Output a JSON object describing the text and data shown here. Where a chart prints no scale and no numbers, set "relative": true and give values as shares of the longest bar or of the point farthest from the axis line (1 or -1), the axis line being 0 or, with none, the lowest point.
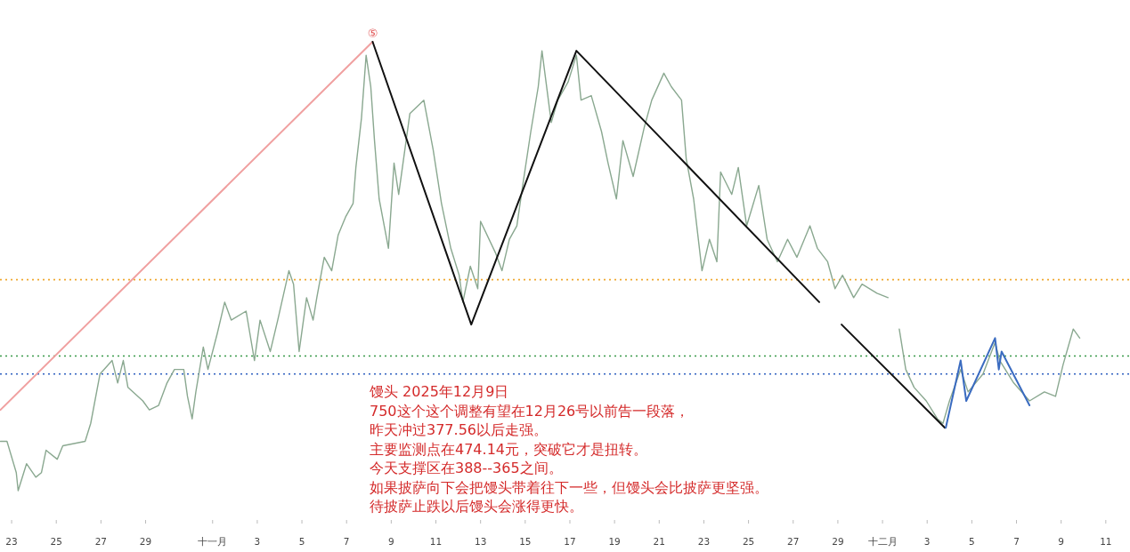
{
  "chart_data": {
    "type": "line",
    "relative": true,
    "xlim": [
      "2025-10-22T11:30",
      "2025-12-12T02:00"
    ],
    "xticks": [
      {
        "value": "2025-10-23",
        "label": "23"
      },
      {
        "value": "2025-10-25",
        "label": "25"
      },
      {
        "value": "2025-10-27",
        "label": "27"
      },
      {
        "value": "2025-10-29",
        "label": "29"
      },
      {
        "value": "2025-11-01",
        "label": "十一月"
      },
      {
        "value": "2025-11-03",
        "label": "3"
      },
      {
        "value": "2025-11-05",
        "label": "5"
      },
      {
        "value": "2025-11-07",
        "label": "7"
      },
      {
        "value": "2025-11-09",
        "label": "9"
      },
      {
        "value": "2025-11-11",
        "label": "11"
      },
      {
        "value": "2025-11-13",
        "label": "13"
      },
      {
        "value": "2025-11-15",
        "label": "15"
      },
      {
        "value": "2025-11-17",
        "label": "17"
      },
      {
        "value": "2025-11-19",
        "label": "19"
      },
      {
        "value": "2025-11-21",
        "label": "21"
      },
      {
        "value": "2025-11-23",
        "label": "23"
      },
      {
        "value": "2025-11-25",
        "label": "25"
      },
      {
        "value": "2025-11-27",
        "label": "27"
      },
      {
        "value": "2025-11-29",
        "label": "29"
      },
      {
        "value": "2025-12-01",
        "label": "十二月"
      },
      {
        "value": "2025-12-03",
        "label": "3"
      },
      {
        "value": "2025-12-05",
        "label": "5"
      },
      {
        "value": "2025-12-07",
        "label": "7"
      },
      {
        "value": "2025-12-09",
        "label": "9"
      },
      {
        "value": "2025-12-11",
        "label": "11"
      }
    ],
    "series": [
      {
        "color": "#8aa890",
        "x": [
          "2025-10-22T12:00",
          "2025-10-22T19:00",
          "2025-10-23T05:00",
          "2025-10-23T07:00",
          "2025-10-23T16:00",
          "2025-10-24T02:00",
          "2025-10-24T08:00",
          "2025-10-24T13:00",
          "2025-10-25T01:00",
          "2025-10-25T07:00",
          "2025-10-26T07:00",
          "2025-10-26T13:00",
          "2025-10-26T23:00",
          "2025-10-27T12:00",
          "2025-10-27T18:00",
          "2025-10-28T00:00",
          "2025-10-28T05:00",
          "2025-10-28T21:00",
          "2025-10-29T04:00",
          "2025-10-29T14:00",
          "2025-10-29T23:00",
          "2025-10-30T07:00",
          "2025-10-30T17:00",
          "2025-10-30T21:00",
          "2025-10-31T02:00",
          "2025-10-31T06:00",
          "2025-10-31T14:00",
          "2025-10-31T19:00",
          "2025-11-01T05:00",
          "2025-11-01T13:00",
          "2025-11-01T20:00",
          "2025-11-02T12:00",
          "2025-11-02T21:00",
          "2025-11-03T03:00",
          "2025-11-03T14:00",
          "2025-11-03T22:00",
          "2025-11-04T10:00",
          "2025-11-04T15:00",
          "2025-11-04T21:00",
          "2025-11-05T05:00",
          "2025-11-05T12:00",
          "2025-11-05T16:00",
          "2025-11-06T00:00",
          "2025-11-06T08:00",
          "2025-11-06T15:00",
          "2025-11-06T23:00",
          "2025-11-07T07:00",
          "2025-11-07T10:00",
          "2025-11-07T16:00",
          "2025-11-07T21:00",
          "2025-11-08T02:00",
          "2025-11-08T06:00",
          "2025-11-08T11:00",
          "2025-11-08T21:00",
          "2025-11-09T03:00",
          "2025-11-09T08:00",
          "2025-11-09T20:00",
          "2025-11-10T11:00",
          "2025-11-10T21:00",
          "2025-11-11T06:00",
          "2025-11-11T16:00",
          "2025-11-12T01:00",
          "2025-11-12T05:00",
          "2025-11-12T13:00",
          "2025-11-12T21:00",
          "2025-11-13T00:00",
          "2025-11-13T16:00",
          "2025-11-13T23:00",
          "2025-11-14T07:00",
          "2025-11-14T15:00",
          "2025-11-14T22:00",
          "2025-11-15T06:00",
          "2025-11-15T14:00",
          "2025-11-15T18:00",
          "2025-11-16T04:00",
          "2025-11-16T11:00",
          "2025-11-16T22:00",
          "2025-11-17T07:00",
          "2025-11-17T12:00",
          "2025-11-17T23:00",
          "2025-11-18T10:00",
          "2025-11-18T17:00",
          "2025-11-19T02:00",
          "2025-11-19T09:00",
          "2025-11-19T20:00",
          "2025-11-20T08:00",
          "2025-11-20T16:00",
          "2025-11-21T05:00",
          "2025-11-21T13:00",
          "2025-11-22T00:00",
          "2025-11-22T05:00",
          "2025-11-22T13:00",
          "2025-11-22T22:00",
          "2025-11-23T06:00",
          "2025-11-23T14:00",
          "2025-11-23T18:00",
          "2025-11-24T06:00",
          "2025-11-24T13:00",
          "2025-11-24T22:00",
          "2025-11-25T11:00",
          "2025-11-25T20:00",
          "2025-11-26T07:00",
          "2025-11-26T18:00",
          "2025-11-27T04:00",
          "2025-11-27T18:00",
          "2025-11-28T02:00",
          "2025-11-28T13:00",
          "2025-11-28T21:00",
          "2025-11-29T05:00",
          "2025-11-29T17:00",
          "2025-11-30T02:00",
          "2025-11-30T18:00",
          "2025-12-01T06:00",
          "2025-12-01T12:00",
          "2025-12-01T18:00",
          "2025-12-02T01:00",
          "2025-12-02T10:00",
          "2025-12-02T23:00",
          "2025-12-03T11:00",
          "2025-12-03T17:00",
          "2025-12-04T00:00",
          "2025-12-04T12:00",
          "2025-12-04T20:00",
          "2025-12-05T12:00",
          "2025-12-06T01:00",
          "2025-12-06T06:00",
          "2025-12-06T21:00",
          "2025-12-07T14:00",
          "2025-12-08T06:00",
          "2025-12-08T18:00",
          "2025-12-09T02:00",
          "2025-12-09T13:00",
          "2025-12-09T20:00"
        ],
        "values": [
          0.11,
          0.11,
          0.04,
          0.0,
          0.06,
          0.03,
          0.04,
          0.09,
          0.07,
          0.1,
          0.11,
          0.15,
          0.26,
          0.29,
          0.24,
          0.29,
          0.23,
          0.2,
          0.18,
          0.19,
          0.24,
          0.27,
          0.27,
          0.21,
          0.16,
          0.22,
          0.32,
          0.27,
          0.35,
          0.42,
          0.38,
          0.4,
          0.29,
          0.38,
          0.31,
          0.38,
          0.49,
          0.46,
          0.31,
          0.43,
          0.38,
          0.43,
          0.52,
          0.49,
          0.57,
          0.61,
          0.64,
          0.72,
          0.83,
          0.97,
          0.9,
          0.78,
          0.65,
          0.54,
          0.73,
          0.66,
          0.84,
          0.87,
          0.76,
          0.64,
          0.54,
          0.48,
          0.42,
          0.5,
          0.45,
          0.6,
          0.53,
          0.49,
          0.56,
          0.59,
          0.69,
          0.8,
          0.9,
          0.98,
          0.82,
          0.87,
          0.91,
          0.97,
          0.87,
          0.88,
          0.8,
          0.73,
          0.65,
          0.78,
          0.7,
          0.81,
          0.87,
          0.93,
          0.9,
          0.87,
          0.74,
          0.65,
          0.49,
          0.56,
          0.51,
          0.71,
          0.66,
          0.72,
          0.59,
          0.68,
          0.56,
          0.51,
          0.56,
          0.52,
          0.59,
          0.54,
          0.51,
          0.45,
          0.48,
          0.43,
          0.46,
          0.44,
          0.43,
          null,
          0.36,
          0.27,
          0.23,
          0.2,
          0.16,
          0.15,
          0.2,
          0.27,
          0.22,
          0.26,
          0.33,
          0.29,
          0.24,
          0.2,
          0.22,
          0.21,
          0.28,
          0.36,
          0.34
        ]
      },
      {
        "color": "#f0a0a0",
        "x": [
          "2025-10-22T12:00",
          "2025-11-08T04:00"
        ],
        "values": [
          0.18,
          1
        ]
      },
      {
        "color": "#111111",
        "x": [
          "2025-11-08T04:00",
          "2025-11-12T14:00",
          "2025-11-17T07:00",
          "2025-11-28T04:00",
          "2025-11-28T16:00",
          "2025-11-29T04:00",
          "2025-12-03T19:00"
        ],
        "values": [
          1,
          0.37,
          0.98,
          0.42,
          null,
          0.37,
          0.14
        ]
      },
      {
        "color": "#3a6bc0",
        "x": [
          "2025-12-03T20:00",
          "2025-12-04T12:00",
          "2025-12-04T18:00",
          "2025-12-06T01:00",
          "2025-12-06T05:00",
          "2025-12-06T08:00",
          "2025-12-07T14:00"
        ],
        "values": [
          0.14,
          0.29,
          0.2,
          0.34,
          0.27,
          0.31,
          0.19
        ]
      }
    ],
    "ref_lines": [
      {
        "axis": "y",
        "value": 0.47,
        "color": "#f0a830",
        "line_style": "dotted"
      },
      {
        "axis": "y",
        "value": 0.3,
        "color": "#3a9a4a",
        "line_style": "dotted"
      },
      {
        "axis": "y",
        "value": 0.26,
        "color": "#3060c0",
        "line_style": "dotted"
      }
    ],
    "annotations": [
      {
        "text": "⑤",
        "x": "2025-11-08T04:00",
        "y": 1
      },
      "馒头 2025年12月9日",
      "750这个这个调整有望在12月26号以前告一段落，",
      "昨天冲过377.56以后走强。",
      "主要监测点在474.14元，突破它才是扭转。",
      "今天支撑区在388--365之间。",
      "如果披萨向下会把馒头带着往下一些，但馒头会比披萨更坚强。",
      "待披萨止跌以后馒头会涨得更快。"
    ]
  }
}
